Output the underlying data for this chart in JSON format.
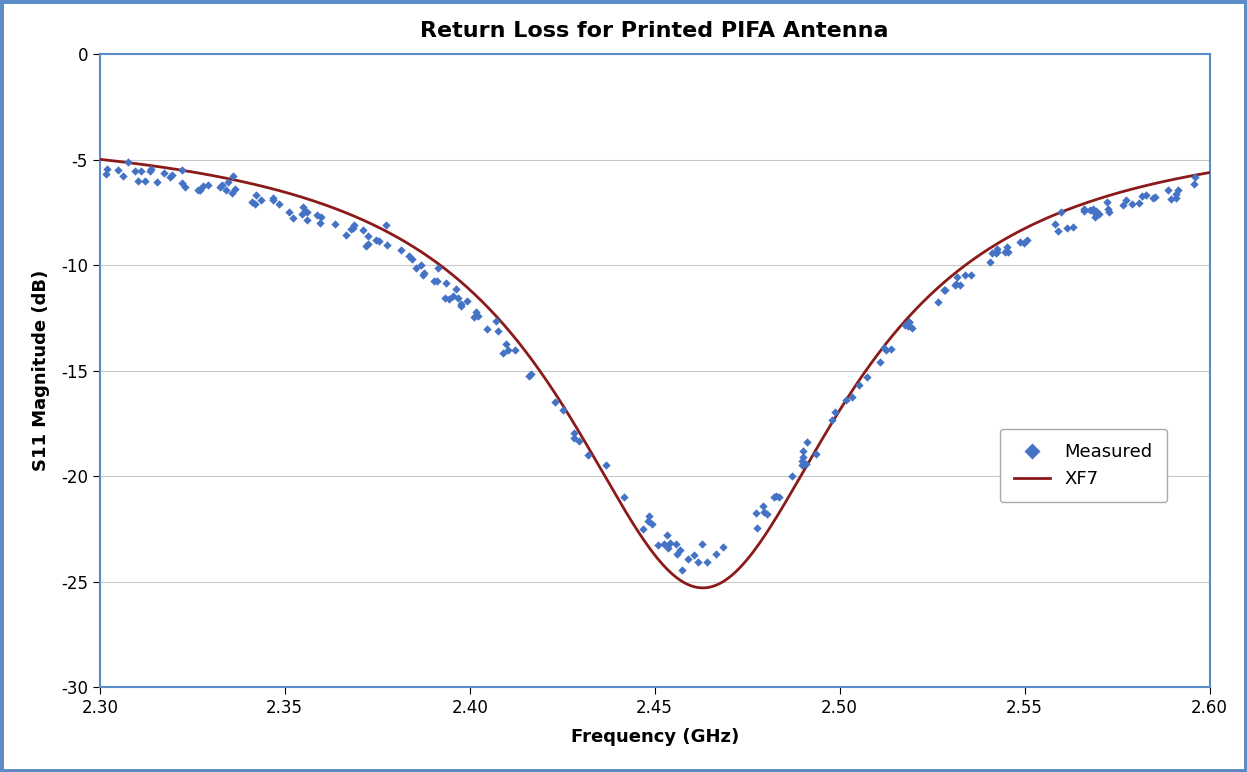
{
  "title": "Return Loss for Printed PIFA Antenna",
  "xlabel": "Frequency (GHz)",
  "ylabel": "S11 Magnitude (dB)",
  "xlim": [
    2.3,
    2.6
  ],
  "ylim": [
    -30,
    0
  ],
  "xticks": [
    2.3,
    2.35,
    2.4,
    2.45,
    2.5,
    2.55,
    2.6
  ],
  "yticks": [
    0,
    -5,
    -10,
    -15,
    -20,
    -25,
    -30
  ],
  "xf7_color": "#8B1A1A",
  "measured_color": "#4472C4",
  "background_color": "#FFFFFF",
  "border_color": "#5B8CC8",
  "grid_color": "#C8C8C8",
  "title_fontsize": 16,
  "axis_label_fontsize": 13,
  "tick_fontsize": 12
}
